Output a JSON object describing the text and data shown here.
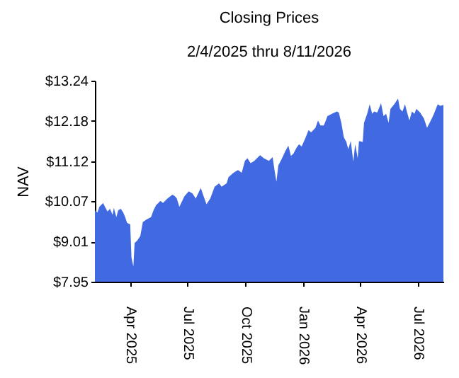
{
  "chart_data": {
    "type": "area",
    "title": "Closing Prices",
    "subtitle": "2/4/2025 thru 8/11/2026",
    "ylabel": "NAV",
    "color": "#4169e1",
    "grid": false,
    "x": [
      "2025-02-04",
      "2025-02-08",
      "2025-02-11",
      "2025-02-17",
      "2025-02-20",
      "2025-02-24",
      "2025-02-28",
      "2025-03-04",
      "2025-03-06",
      "2025-03-10",
      "2025-03-13",
      "2025-03-17",
      "2025-03-21",
      "2025-03-24",
      "2025-03-27",
      "2025-04-01",
      "2025-04-03",
      "2025-04-06",
      "2025-04-08",
      "2025-04-12",
      "2025-04-17",
      "2025-04-21",
      "2025-04-27",
      "2025-05-04",
      "2025-05-08",
      "2025-05-12",
      "2025-05-19",
      "2025-05-23",
      "2025-05-30",
      "2025-06-07",
      "2025-06-11",
      "2025-06-14",
      "2025-06-18",
      "2025-06-26",
      "2025-07-03",
      "2025-07-09",
      "2025-07-14",
      "2025-07-22",
      "2025-07-25",
      "2025-07-31",
      "2025-08-06",
      "2025-08-13",
      "2025-08-20",
      "2025-08-24",
      "2025-09-01",
      "2025-09-04",
      "2025-09-12",
      "2025-09-19",
      "2025-09-25",
      "2025-09-30",
      "2025-10-04",
      "2025-10-09",
      "2025-10-15",
      "2025-10-24",
      "2025-10-30",
      "2025-11-07",
      "2025-11-13",
      "2025-11-16",
      "2025-11-19",
      "2025-11-22",
      "2025-11-28",
      "2025-12-03",
      "2025-12-08",
      "2025-12-12",
      "2025-12-16",
      "2025-12-21",
      "2025-12-25",
      "2025-12-29",
      "2026-01-04",
      "2026-01-09",
      "2026-01-13",
      "2026-01-20",
      "2026-01-24",
      "2026-01-28",
      "2026-02-02",
      "2026-02-04",
      "2026-02-08",
      "2026-02-15",
      "2026-02-23",
      "2026-02-26",
      "2026-03-02",
      "2026-03-06",
      "2026-03-10",
      "2026-03-13",
      "2026-03-17",
      "2026-03-21",
      "2026-03-24",
      "2026-03-28",
      "2026-03-30",
      "2026-04-05",
      "2026-04-07",
      "2026-04-12",
      "2026-04-16",
      "2026-04-20",
      "2026-04-23",
      "2026-04-28",
      "2026-05-04",
      "2026-05-08",
      "2026-05-12",
      "2026-05-16",
      "2026-05-19",
      "2026-05-25",
      "2026-05-31",
      "2026-06-03",
      "2026-06-07",
      "2026-06-11",
      "2026-06-14",
      "2026-06-18",
      "2026-06-22",
      "2026-06-26",
      "2026-06-29",
      "2026-07-05",
      "2026-07-11",
      "2026-07-16",
      "2026-07-22",
      "2026-07-27",
      "2026-08-02",
      "2026-08-06",
      "2026-08-11"
    ],
    "values": [
      9.83,
      9.77,
      9.92,
      10.02,
      9.92,
      9.8,
      9.87,
      9.71,
      9.89,
      9.65,
      9.83,
      9.87,
      9.77,
      9.65,
      9.5,
      9.46,
      8.59,
      8.35,
      8.97,
      9.03,
      9.15,
      9.52,
      9.59,
      9.65,
      9.83,
      9.96,
      10.08,
      10.02,
      10.14,
      10.24,
      10.2,
      10.14,
      9.92,
      10.2,
      10.33,
      10.27,
      10.14,
      10.42,
      10.27,
      9.99,
      10.14,
      10.45,
      10.54,
      10.45,
      10.54,
      10.7,
      10.82,
      10.89,
      10.82,
      11.13,
      11.2,
      11.07,
      11.13,
      11.28,
      11.2,
      11.13,
      11.23,
      10.89,
      10.58,
      11.01,
      11.2,
      11.38,
      11.53,
      11.26,
      11.32,
      11.48,
      11.57,
      11.51,
      11.73,
      11.94,
      11.88,
      12.0,
      12.19,
      12.06,
      12.06,
      12.13,
      12.31,
      12.37,
      12.43,
      12.4,
      12.13,
      11.75,
      11.63,
      11.44,
      11.65,
      11.11,
      11.57,
      11.2,
      11.65,
      11.63,
      12.13,
      12.37,
      12.62,
      12.37,
      12.43,
      12.4,
      12.65,
      12.31,
      12.37,
      12.13,
      12.5,
      12.62,
      12.77,
      12.5,
      12.43,
      12.62,
      12.43,
      12.19,
      12.43,
      12.37,
      12.5,
      12.4,
      12.25,
      12.0,
      12.19,
      12.37,
      12.62,
      12.58,
      12.6
    ],
    "xlim": [
      "2025-02-04",
      "2026-08-11"
    ],
    "xticks": [
      {
        "value": "2025-04-01",
        "label": "Apr 2025"
      },
      {
        "value": "2025-07-01",
        "label": "Jul 2025"
      },
      {
        "value": "2025-10-01",
        "label": "Oct 2025"
      },
      {
        "value": "2026-01-01",
        "label": "Jan 2026"
      },
      {
        "value": "2026-04-01",
        "label": "Apr 2026"
      },
      {
        "value": "2026-07-01",
        "label": "Jul 2026"
      }
    ],
    "ylim": [
      7.95,
      13.24
    ],
    "yticks": [
      {
        "value": 7.95,
        "label": "$7.95"
      },
      {
        "value": 9.01,
        "label": "$9.01"
      },
      {
        "value": 10.07,
        "label": "$10.07"
      },
      {
        "value": 11.12,
        "label": "$11.12"
      },
      {
        "value": 12.18,
        "label": "$12.18"
      },
      {
        "value": 13.24,
        "label": "$13.24"
      }
    ]
  }
}
